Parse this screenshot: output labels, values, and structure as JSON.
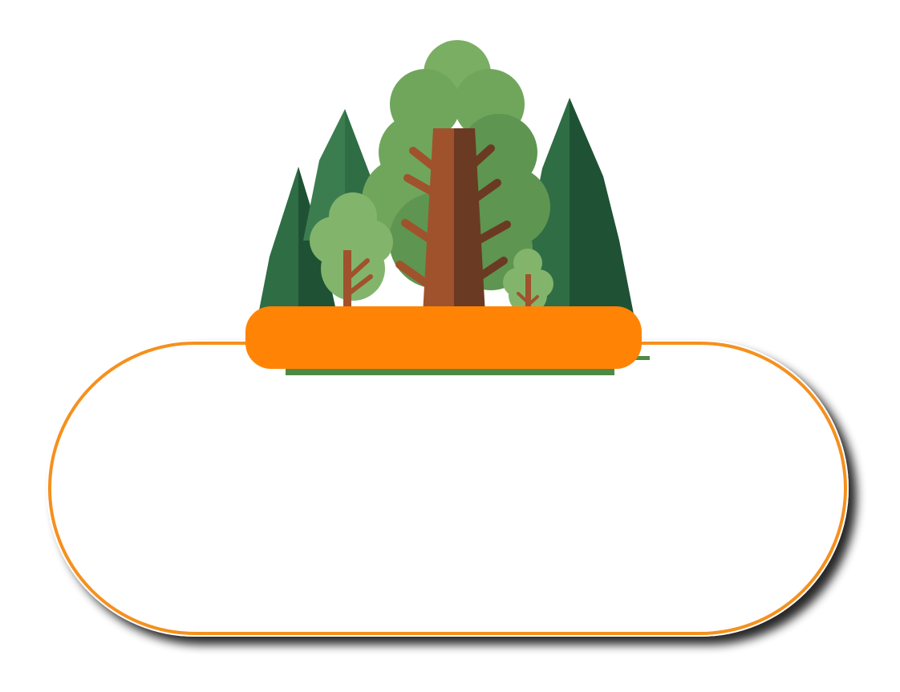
{
  "banner": {
    "label": ""
  },
  "body": {
    "text": ""
  },
  "colors": {
    "background": "#ffffff",
    "frame_border": "#f5901e",
    "frame_fill": "#ffffff",
    "frame_shadow": "#000000",
    "banner_fill": "#ff8406",
    "ground_strip": "#4f8a45",
    "pine_dark": "#1f5234",
    "pine_mid": "#2f6d45",
    "pine_light": "#3c7d50",
    "canopy_dark": "#5e9550",
    "canopy_mid": "#6fa65c",
    "canopy_light": "#82b56b",
    "trunk_light": "#a0522d",
    "trunk_dark": "#6b3a22"
  },
  "icons": [
    "forest-illustration-icon",
    "pine-tree-icon",
    "deciduous-tree-icon"
  ]
}
